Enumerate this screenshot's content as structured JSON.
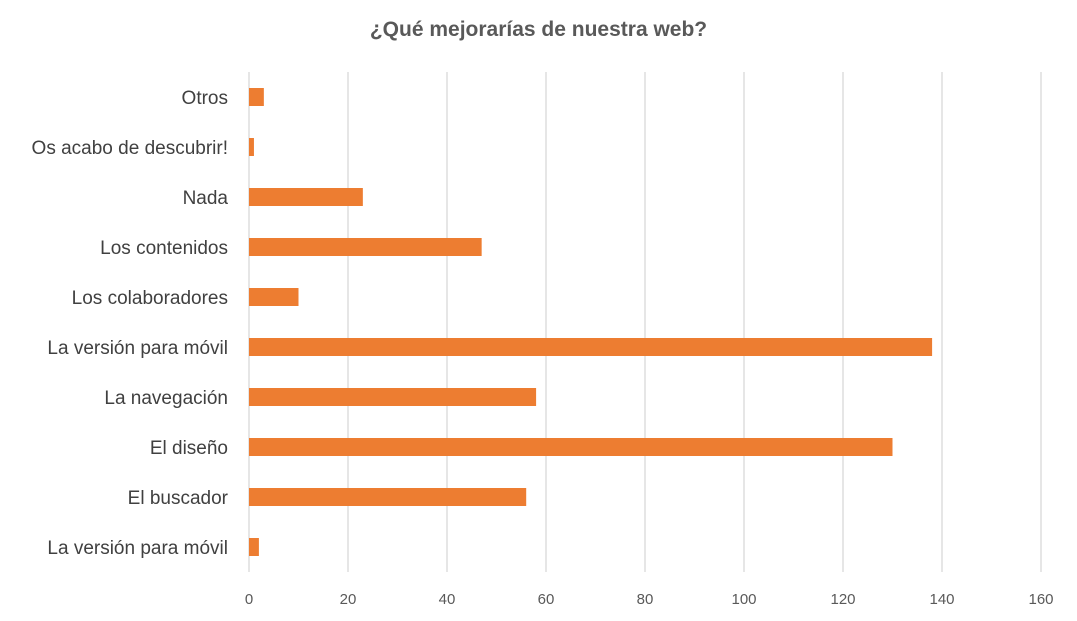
{
  "chart_data": {
    "type": "bar",
    "orientation": "horizontal",
    "title": "¿Qué mejorarías de nuestra web?",
    "categories": [
      "Otros",
      "Os acabo de descubrir!",
      "Nada",
      "Los contenidos",
      "Los colaboradores",
      "La versión para móvil",
      "La navegación",
      "El diseño",
      "El buscador",
      "La versión para móvil"
    ],
    "values": [
      3,
      1,
      23,
      47,
      10,
      138,
      58,
      130,
      56,
      2
    ],
    "xlim": [
      0,
      160
    ],
    "xticks": [
      0,
      20,
      40,
      60,
      80,
      100,
      120,
      140,
      160
    ],
    "grid": true,
    "legend": "none",
    "bar_color": "#ED7D31"
  }
}
